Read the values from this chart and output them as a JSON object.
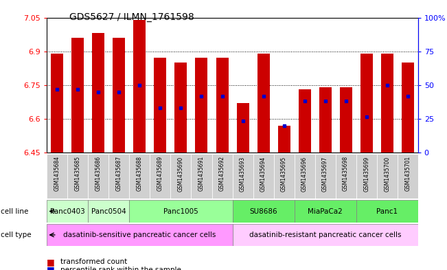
{
  "title": "GDS5627 / ILMN_1761598",
  "samples": [
    "GSM1435684",
    "GSM1435685",
    "GSM1435686",
    "GSM1435687",
    "GSM1435688",
    "GSM1435689",
    "GSM1435690",
    "GSM1435691",
    "GSM1435692",
    "GSM1435693",
    "GSM1435694",
    "GSM1435695",
    "GSM1435696",
    "GSM1435697",
    "GSM1435698",
    "GSM1435699",
    "GSM1435700",
    "GSM1435701"
  ],
  "bar_heights": [
    6.89,
    6.96,
    6.98,
    6.96,
    7.04,
    6.87,
    6.85,
    6.87,
    6.87,
    6.67,
    6.89,
    6.57,
    6.73,
    6.74,
    6.74,
    6.89,
    6.89,
    6.85
  ],
  "blue_markers": [
    6.73,
    6.73,
    6.72,
    6.72,
    6.75,
    6.65,
    6.65,
    6.7,
    6.7,
    6.59,
    6.7,
    6.57,
    6.68,
    6.68,
    6.68,
    6.61,
    6.75,
    6.7
  ],
  "ymin": 6.45,
  "ymax": 7.05,
  "y_ticks": [
    6.45,
    6.6,
    6.75,
    6.9,
    7.05
  ],
  "y_tick_labels": [
    "6.45",
    "6.6",
    "6.75",
    "6.9",
    "7.05"
  ],
  "right_y_ticks": [
    0,
    25,
    50,
    75,
    100
  ],
  "right_y_tick_labels": [
    "0",
    "25",
    "50",
    "75",
    "100%"
  ],
  "cell_line_groups": [
    {
      "label": "Panc0403",
      "indices": [
        0,
        1
      ],
      "color": "#ccffcc"
    },
    {
      "label": "Panc0504",
      "indices": [
        2,
        3
      ],
      "color": "#ccffcc"
    },
    {
      "label": "Panc1005",
      "indices": [
        4,
        5,
        6,
        7,
        8
      ],
      "color": "#99ff99"
    },
    {
      "label": "SU8686",
      "indices": [
        9,
        10,
        11
      ],
      "color": "#66ee66"
    },
    {
      "label": "MiaPaCa2",
      "indices": [
        12,
        13,
        14
      ],
      "color": "#66ee66"
    },
    {
      "label": "Panc1",
      "indices": [
        15,
        16,
        17
      ],
      "color": "#66ee66"
    }
  ],
  "cell_type_groups": [
    {
      "label": "dasatinib-sensitive pancreatic cancer cells",
      "indices": [
        0,
        1,
        2,
        3,
        4,
        5,
        6,
        7,
        8
      ],
      "color": "#ff99ff"
    },
    {
      "label": "dasatinib-resistant pancreatic cancer cells",
      "indices": [
        9,
        10,
        11,
        12,
        13,
        14,
        15,
        16,
        17
      ],
      "color": "#ffccff"
    }
  ],
  "bar_color": "#cc0000",
  "blue_marker_color": "#0000cc",
  "legend_items": [
    {
      "label": "transformed count",
      "color": "#cc0000",
      "marker": "s"
    },
    {
      "label": "percentile rank within the sample",
      "color": "#0000cc",
      "marker": "s"
    }
  ]
}
